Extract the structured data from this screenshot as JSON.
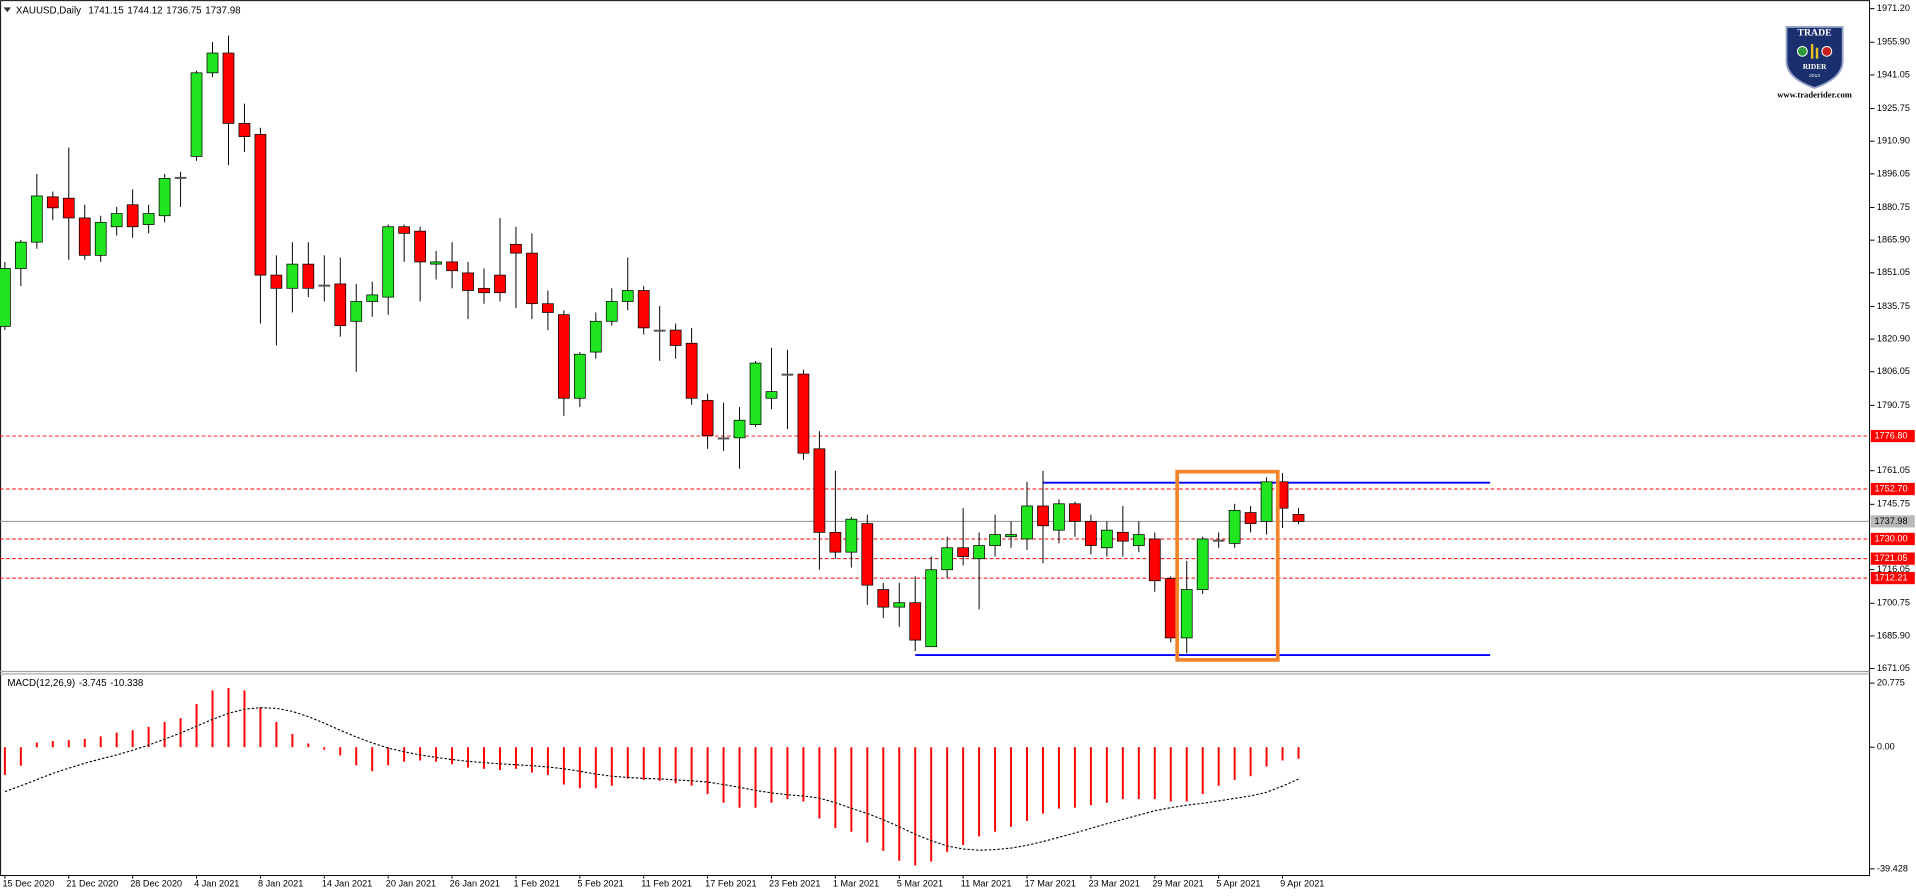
{
  "chart_data": [
    {
      "type": "candlestick",
      "symbol": "XAUUSD,Daily",
      "ohlc": [
        1741.15,
        1744.12,
        1736.75,
        1737.98
      ],
      "categories": [
        "15 Dec 2020",
        null,
        null,
        null,
        "21 Dec 2020",
        null,
        null,
        null,
        "28 Dec 2020",
        null,
        null,
        null,
        "4 Jan 2021",
        null,
        null,
        null,
        "8 Jan 2021",
        null,
        null,
        null,
        "14 Jan 2021",
        null,
        null,
        null,
        "20 Jan 2021",
        null,
        null,
        null,
        "26 Jan 2021",
        null,
        null,
        null,
        "1 Feb 2021",
        null,
        null,
        null,
        "5 Feb 2021",
        null,
        null,
        null,
        "11 Feb 2021",
        null,
        null,
        null,
        "17 Feb 2021",
        null,
        null,
        null,
        "23 Feb 2021",
        null,
        null,
        null,
        "1 Mar 2021",
        null,
        null,
        null,
        "5 Mar 2021",
        null,
        null,
        null,
        "11 Mar 2021",
        null,
        null,
        null,
        "17 Mar 2021",
        null,
        null,
        null,
        "23 Mar 2021",
        null,
        null,
        null,
        "29 Mar 2021",
        null,
        null,
        null,
        "5 Apr 2021",
        null,
        null,
        null,
        "9 Apr 2021",
        null
      ],
      "open": [
        1826.7,
        1853,
        1865,
        1885.6,
        1885,
        1876,
        1859,
        1872,
        1882,
        1873,
        1877,
        1894,
        1904,
        1942,
        1951,
        1919,
        1914,
        1850,
        1844,
        1855,
        1845,
        1846,
        1829,
        1838,
        1840,
        1872,
        1870,
        1855,
        1856,
        1851,
        1844,
        1850,
        1864,
        1860,
        1837,
        1832,
        1794,
        1815,
        1829,
        1838,
        1843,
        1825,
        1825,
        1819,
        1793,
        1776,
        1776,
        1782,
        1794,
        1805,
        1805,
        1771,
        1733,
        1724,
        1737,
        1707,
        1699,
        1701,
        1681,
        1716,
        1726,
        1721,
        1727,
        1731,
        1730,
        1745,
        1734,
        1746,
        1738,
        1726,
        1733,
        1727,
        1730,
        1712,
        1685,
        1707,
        1729,
        1728,
        1742,
        1738,
        1756,
        1741.15
      ],
      "high": [
        1856,
        1866,
        1896,
        1888,
        1908,
        1882,
        1877,
        1881,
        1889,
        1882,
        1896,
        1897,
        1943,
        1956,
        1959,
        1928,
        1917,
        1859,
        1865,
        1865,
        1859,
        1858,
        1846,
        1847,
        1873,
        1873,
        1872,
        1861,
        1865,
        1856,
        1853,
        1876,
        1872,
        1869,
        1843,
        1834,
        1815,
        1833,
        1844,
        1858,
        1845,
        1836,
        1828,
        1826,
        1796,
        1792,
        1790,
        1811,
        1817,
        1816,
        1807,
        1779,
        1761,
        1740,
        1741,
        1710,
        1710,
        1713,
        1722,
        1731,
        1744,
        1733,
        1741,
        1738,
        1756,
        1761,
        1748,
        1747,
        1741,
        1738,
        1745,
        1738,
        1733,
        1713,
        1720,
        1731,
        1733,
        1746,
        1745,
        1758,
        1760,
        1744.12
      ],
      "low": [
        1825,
        1845,
        1862,
        1875,
        1857,
        1857,
        1856,
        1868,
        1867,
        1869,
        1874,
        1881,
        1902,
        1940,
        1900,
        1906,
        1828,
        1818,
        1833,
        1840,
        1838,
        1822,
        1806,
        1831,
        1832,
        1856,
        1838,
        1848,
        1844,
        1830,
        1837,
        1838,
        1835,
        1830,
        1825,
        1786,
        1790,
        1812,
        1827,
        1834,
        1823,
        1811,
        1812,
        1791,
        1771,
        1770,
        1762,
        1781,
        1789,
        1780,
        1766,
        1716,
        1721,
        1717,
        1700,
        1694,
        1690,
        1679,
        1681,
        1712,
        1718,
        1698,
        1722,
        1726,
        1725,
        1719,
        1728,
        1731,
        1723,
        1722,
        1722,
        1724,
        1706,
        1683,
        1678,
        1705,
        1726,
        1726,
        1733,
        1732,
        1735,
        1736.75
      ],
      "close": [
        1853,
        1865,
        1886,
        1880.6,
        1876,
        1859,
        1874,
        1878,
        1872,
        1878,
        1894,
        1894.5,
        1942,
        1951,
        1919,
        1913,
        1850,
        1844,
        1855,
        1844,
        1845.5,
        1827,
        1838,
        1841,
        1872,
        1869,
        1856,
        1856,
        1852,
        1843,
        1842,
        1842,
        1860,
        1837,
        1833,
        1794,
        1814,
        1829,
        1838,
        1843,
        1826,
        1824.5,
        1818,
        1794,
        1777,
        1775.5,
        1784,
        1810,
        1797,
        1805,
        1769,
        1733,
        1724,
        1739,
        1709,
        1699,
        1701,
        1684,
        1716,
        1726,
        1722,
        1727,
        1732,
        1732,
        1745,
        1736,
        1746,
        1738,
        1727,
        1734,
        1729,
        1732,
        1711,
        1685,
        1707,
        1730,
        1729.5,
        1743,
        1737,
        1756,
        1744,
        1737.98
      ],
      "up_color": "#1fe61f",
      "down_color": "#ff0000",
      "doji_color": "#555555",
      "ylim": [
        1670.0,
        1974.0
      ],
      "yticks": [
        {
          "value": 1971.2,
          "label": "1971.20"
        },
        {
          "value": 1955.9,
          "label": "1955.90"
        },
        1941.05,
        1925.75,
        {
          "value": 1910.9,
          "label": "1910.90"
        },
        1896.05,
        1880.75,
        {
          "value": 1865.9,
          "label": "1865.90"
        },
        1851.05,
        1835.75,
        {
          "value": 1820.9,
          "label": "1820.90"
        },
        1806.05,
        1790.75,
        1761.05,
        1745.75,
        1716.05,
        1700.75,
        {
          "value": 1685.9,
          "label": "1685.90"
        },
        1671.05
      ],
      "grid": false,
      "levels": {
        "values": [
          1776.8,
          1752.7,
          1730,
          1721.05,
          1712.21
        ],
        "value_labels": [
          "1776.80",
          "1752.70",
          "1730.00",
          "1721.05",
          "1712.21"
        ],
        "color": "#ff0000"
      },
      "last_price": 1737.98,
      "lines": [
        {
          "value": 1755.6,
          "from": 65,
          "to": 93,
          "color": "#0000ff"
        },
        {
          "value": 1677.2,
          "from": 57,
          "to": 93,
          "color": "#0000ff"
        }
      ],
      "box": {
        "top": 1760.6,
        "bottom": 1675,
        "from": 73.4,
        "to": 79.7,
        "color": "#f5842b"
      }
    },
    {
      "type": "macd",
      "title": "MACD(12,26,9)",
      "current": [
        -3.745,
        -10.338
      ],
      "series": [
        {
          "style": "histogram",
          "color": "#ff0000",
          "values": [
            -9,
            -6,
            1.5,
            2,
            2.3,
            2.7,
            3.5,
            4.7,
            5.5,
            6.6,
            8.2,
            9.4,
            14,
            18.4,
            19.2,
            18.4,
            12.9,
            8.2,
            4.3,
            1.2,
            -0.8,
            -2.7,
            -5.9,
            -7.8,
            -5.9,
            -4.7,
            -4.3,
            -4.7,
            -5.5,
            -6.6,
            -7,
            -7.4,
            -7,
            -8.2,
            -9,
            -12.1,
            -13.3,
            -13.3,
            -12.5,
            -10.2,
            -10.6,
            -10.9,
            -11.7,
            -12.5,
            -15.2,
            -18,
            -19.6,
            -19.6,
            -18,
            -16.8,
            -17.6,
            -23.1,
            -26.2,
            -27.4,
            -30.9,
            -33.6,
            -36.8,
            -38.3,
            -37.1,
            -34,
            -31.7,
            -28.9,
            -27.4,
            -25.8,
            -23.9,
            -21.5,
            -19.9,
            -19.6,
            -18.8,
            -18,
            -16.8,
            -16.8,
            -16.8,
            -17.6,
            -17.6,
            -15.2,
            -12.5,
            -10.6,
            -9.4,
            -6.3,
            -4.3,
            -3.745
          ]
        },
        {
          "style": "dotted",
          "color": "#000000",
          "values": [
            -14.4,
            -12.5,
            -10.5,
            -8.5,
            -6.8,
            -5.2,
            -3.8,
            -2.5,
            -1,
            0.7,
            2.6,
            4.6,
            6.8,
            9,
            11,
            12.3,
            12.8,
            12.6,
            11.6,
            9.9,
            7.8,
            5.5,
            3.3,
            1.4,
            -0.3,
            -1.5,
            -2.5,
            -3.3,
            -4,
            -4.6,
            -5,
            -5.4,
            -5.7,
            -6,
            -6.4,
            -7,
            -7.8,
            -8.7,
            -9.4,
            -9.8,
            -10.1,
            -10.3,
            -10.6,
            -10.9,
            -11.3,
            -12.1,
            -13,
            -14,
            -14.8,
            -15.4,
            -15.8,
            -16.5,
            -18,
            -19.8,
            -21.5,
            -23.5,
            -25.8,
            -28.2,
            -30.3,
            -32,
            -33,
            -33.4,
            -33.2,
            -32.7,
            -31.8,
            -30.6,
            -29.2,
            -27.8,
            -26.3,
            -24.8,
            -23.4,
            -22,
            -20.6,
            -19.6,
            -18.8,
            -18.2,
            -17.4,
            -16.6,
            -15.8,
            -14.6,
            -12.6,
            -10.338
          ]
        }
      ],
      "ylim": [
        -41.8,
        23.15
      ],
      "yticks": [
        20.775,
        {
          "value": 0,
          "label": "0.00"
        },
        -39.428
      ]
    }
  ],
  "logo": {
    "line1": "TRADE",
    "line2": "RIDER",
    "year": "2013",
    "url": "www.traderider.com"
  }
}
